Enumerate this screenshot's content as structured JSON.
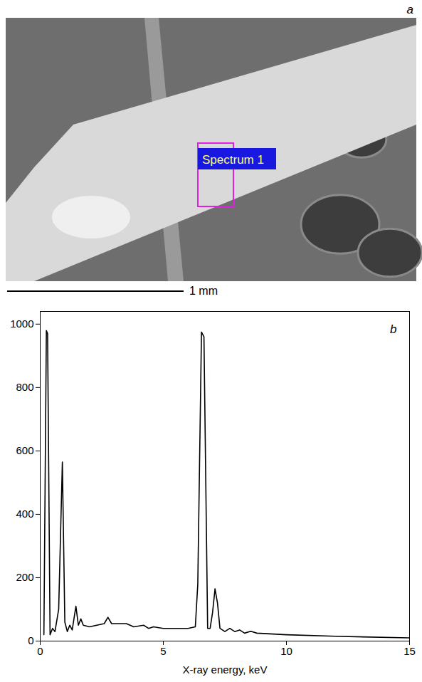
{
  "panel_a": {
    "letter": "a",
    "label": "Spectrum 1",
    "scale_bar": "1 mm"
  },
  "chart_data": {
    "type": "line",
    "letter": "b",
    "x_label": "X-ray energy, keV",
    "x": [
      0.15,
      0.25,
      0.3,
      0.4,
      0.5,
      0.6,
      0.75,
      0.9,
      1.0,
      1.1,
      1.2,
      1.3,
      1.45,
      1.55,
      1.65,
      1.75,
      2.0,
      2.3,
      2.6,
      2.75,
      2.9,
      3.3,
      3.5,
      3.8,
      4.2,
      4.4,
      4.6,
      5.0,
      5.5,
      6.0,
      6.3,
      6.4,
      6.55,
      6.65,
      6.8,
      6.9,
      7.0,
      7.1,
      7.2,
      7.3,
      7.5,
      7.7,
      7.9,
      8.1,
      8.3,
      8.5,
      8.6,
      8.8,
      10,
      12,
      15
    ],
    "values": [
      20,
      980,
      970,
      20,
      40,
      30,
      100,
      565,
      60,
      30,
      50,
      35,
      110,
      50,
      70,
      50,
      45,
      50,
      55,
      75,
      55,
      55,
      55,
      45,
      50,
      40,
      45,
      40,
      40,
      40,
      45,
      180,
      975,
      960,
      40,
      40,
      90,
      165,
      120,
      40,
      30,
      40,
      30,
      35,
      25,
      30,
      30,
      25,
      20,
      15,
      10
    ],
    "color": "#000000",
    "xlim": [
      0,
      15
    ],
    "xticks": [
      0,
      5,
      10,
      15
    ],
    "ylim": [
      0,
      1040
    ],
    "yticks": [
      0,
      200,
      400,
      600,
      800,
      1000
    ],
    "grid": false
  }
}
